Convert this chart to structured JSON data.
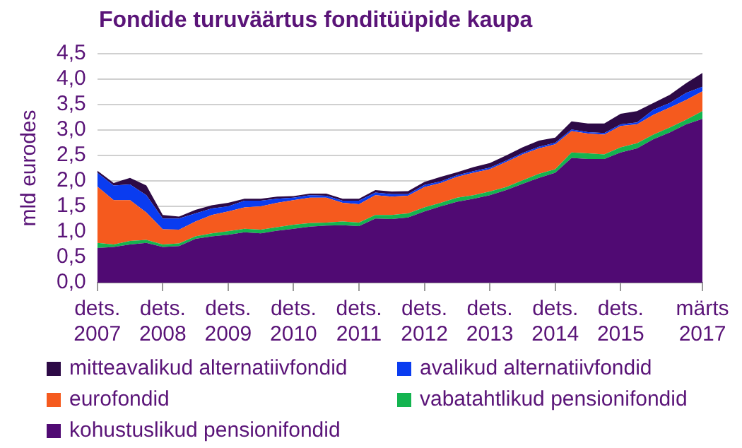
{
  "chart_data": {
    "type": "area",
    "title": "Fondide turuväärtus fonditüüpide kaupa",
    "ylabel": "mld eurodes",
    "categories": [
      "dets. 2007",
      null,
      null,
      null,
      "dets. 2008",
      null,
      null,
      null,
      "dets. 2009",
      null,
      null,
      null,
      "dets. 2010",
      null,
      null,
      null,
      "dets. 2011",
      null,
      null,
      null,
      "dets. 2012",
      null,
      null,
      null,
      "dets. 2013",
      null,
      null,
      null,
      "dets. 2014",
      null,
      null,
      null,
      "dets. 2015",
      null,
      null,
      null,
      null,
      "märts 2017"
    ],
    "stacked": true,
    "grid": "y",
    "legend": "bottom",
    "ylim": [
      0,
      4.5
    ],
    "yticks": [
      {
        "value": 0,
        "label": "0,0"
      },
      {
        "value": 0.5,
        "label": "0,5"
      },
      {
        "value": 1,
        "label": "1,0"
      },
      {
        "value": 1.5,
        "label": "1,5"
      },
      {
        "value": 2,
        "label": "2,0"
      },
      {
        "value": 2.5,
        "label": "2,5"
      },
      {
        "value": 3,
        "label": "3,0"
      },
      {
        "value": 3.5,
        "label": "3,5"
      },
      {
        "value": 4,
        "label": "4,0"
      },
      {
        "value": 4.5,
        "label": "4,5"
      }
    ],
    "series": [
      {
        "name": "kohustuslikud pensionifondid",
        "color": "#500a73",
        "values": [
          0.68,
          0.7,
          0.75,
          0.78,
          0.7,
          0.72,
          0.86,
          0.91,
          0.94,
          0.99,
          0.97,
          1.02,
          1.06,
          1.1,
          1.12,
          1.13,
          1.11,
          1.26,
          1.25,
          1.28,
          1.4,
          1.5,
          1.59,
          1.65,
          1.72,
          1.82,
          1.94,
          2.06,
          2.16,
          2.45,
          2.43,
          2.43,
          2.56,
          2.64,
          2.82,
          2.95,
          3.11,
          3.22
        ]
      },
      {
        "name": "vabatahtlikud pensionifondid",
        "color": "#14b450",
        "values": [
          0.1,
          0.05,
          0.07,
          0.06,
          0.05,
          0.05,
          0.05,
          0.06,
          0.07,
          0.07,
          0.07,
          0.07,
          0.08,
          0.07,
          0.06,
          0.07,
          0.07,
          0.07,
          0.08,
          0.08,
          0.08,
          0.07,
          0.08,
          0.07,
          0.07,
          0.06,
          0.07,
          0.08,
          0.07,
          0.11,
          0.11,
          0.09,
          0.1,
          0.1,
          0.09,
          0.1,
          0.09,
          0.15
        ]
      },
      {
        "name": "eurofondid",
        "color": "#f55a1e",
        "values": [
          1.11,
          0.87,
          0.8,
          0.54,
          0.3,
          0.27,
          0.29,
          0.36,
          0.39,
          0.42,
          0.46,
          0.48,
          0.48,
          0.5,
          0.49,
          0.37,
          0.36,
          0.39,
          0.36,
          0.35,
          0.4,
          0.39,
          0.41,
          0.44,
          0.44,
          0.49,
          0.51,
          0.5,
          0.49,
          0.42,
          0.39,
          0.39,
          0.42,
          0.37,
          0.39,
          0.39,
          0.39,
          0.39
        ]
      },
      {
        "name": "avalikud alternatiivfondid",
        "color": "#0a3cf0",
        "values": [
          0.27,
          0.29,
          0.31,
          0.34,
          0.21,
          0.22,
          0.16,
          0.13,
          0.1,
          0.13,
          0.11,
          0.08,
          0.05,
          0.05,
          0.04,
          0.04,
          0.07,
          0.05,
          0.05,
          0.03,
          0.04,
          0.03,
          0.03,
          0.03,
          0.03,
          0.03,
          0.03,
          0.03,
          0.03,
          0.03,
          0.03,
          0.03,
          0.03,
          0.04,
          0.1,
          0.09,
          0.14,
          0.09
        ]
      },
      {
        "name": "mitteavalikud alternatiivfondid",
        "color": "#2d0a46",
        "values": [
          0.04,
          0.05,
          0.13,
          0.19,
          0.07,
          0.04,
          0.07,
          0.06,
          0.07,
          0.04,
          0.04,
          0.04,
          0.03,
          0.03,
          0.04,
          0.04,
          0.04,
          0.05,
          0.05,
          0.06,
          0.06,
          0.09,
          0.06,
          0.08,
          0.09,
          0.1,
          0.11,
          0.12,
          0.1,
          0.16,
          0.17,
          0.19,
          0.21,
          0.22,
          0.13,
          0.16,
          0.19,
          0.27
        ]
      }
    ]
  }
}
